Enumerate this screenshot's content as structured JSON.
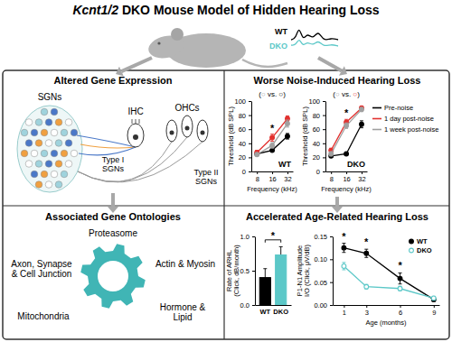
{
  "title": [
    "Kcnt1/2",
    " DKO Mouse Model of Hidden Hearing Loss"
  ],
  "mouse": {
    "labels": [
      "WT",
      "DKO"
    ]
  },
  "gene_expression": {
    "title": "Altered Gene Expression",
    "sgns": "SGNs",
    "ihc": "IHC",
    "ohcs": "OHCs",
    "type_i": [
      "Type I",
      "SGNs"
    ],
    "type_ii": [
      "Type II",
      "SGNs"
    ]
  },
  "gene_ontologies": {
    "title": "Associated Gene Ontologies",
    "terms": [
      [
        "Proteasome"
      ],
      [
        "Axon, Synapse",
        "& Cell Junction"
      ],
      [
        "Actin & Myosin"
      ],
      [
        "Mitochondria"
      ],
      [
        "Hormone &",
        "Lipid"
      ]
    ]
  },
  "noise_panel": {
    "title": "Worse Noise-Induced Hearing Loss"
  },
  "age_panel": {
    "title": "Accelerated Age-Related Hearing Loss"
  },
  "chart_data": [
    {
      "type": "line",
      "title": "WT",
      "x": [
        8,
        16,
        32
      ],
      "log": "x",
      "xlim": [
        6.2,
        41
      ],
      "xticks": [
        8,
        16,
        32
      ],
      "ylim": [
        0,
        100
      ],
      "yticks": [
        0,
        20,
        40,
        60,
        80,
        100
      ],
      "x_label": "Frequency (kHz)",
      "y_label": "Threshold (dB SPL)",
      "marker": "circle",
      "series": [
        {
          "color": "#000000",
          "values": [
            25,
            30,
            50
          ],
          "errors": [
            2,
            2,
            4
          ]
        },
        {
          "color": "#e2312f",
          "values": [
            27,
            48,
            75
          ],
          "errors": [
            3,
            5,
            4
          ]
        },
        {
          "color": "#a0a0a0",
          "values": [
            24,
            37,
            68
          ],
          "errors": [
            2,
            4,
            5
          ]
        }
      ],
      "annotations": [
        {
          "text": [
            "(",
            "○",
            " vs. ",
            "○",
            ")"
          ],
          "colors": [
            "#000000",
            "#a0a0a0",
            "#000000",
            "#000000",
            "#000000"
          ]
        },
        {
          "x": 16,
          "y": 56,
          "text": "*"
        }
      ]
    },
    {
      "type": "line",
      "title": "DKO",
      "x": [
        8,
        16,
        32
      ],
      "log": "x",
      "xlim": [
        6.2,
        41
      ],
      "xticks": [
        8,
        16,
        32
      ],
      "ylim": [
        0,
        100
      ],
      "yticks": [
        0,
        20,
        40,
        60,
        80,
        100
      ],
      "x_label": "Frequency (kHz)",
      "y_label": "Threshold (dB SPL)",
      "marker": "circle",
      "legend": "right",
      "series": [
        {
          "name": "Pre-noise",
          "color": "#000000",
          "values": [
            22,
            25,
            67
          ],
          "errors": [
            2,
            2,
            5
          ]
        },
        {
          "name": "1 day post-noise",
          "color": "#e2312f",
          "values": [
            30,
            70,
            90
          ],
          "errors": [
            3,
            4,
            3
          ]
        },
        {
          "name": "1 week post-noise",
          "color": "#a0a0a0",
          "values": [
            25,
            65,
            88
          ],
          "errors": [
            3,
            4,
            3
          ]
        }
      ],
      "annotations": [
        {
          "text": [
            "(",
            "○",
            " vs. ",
            "○",
            ")"
          ],
          "colors": [
            "#000000",
            "#a0a0a0",
            "#000000",
            "#e2312f",
            "#000000"
          ]
        },
        {
          "x": 16,
          "y": 78,
          "text": "*"
        }
      ]
    },
    {
      "type": "bar",
      "categories": [
        "WT",
        "DKO"
      ],
      "values": [
        0.4,
        0.73
      ],
      "errors": [
        0.13,
        0.12
      ],
      "colors": [
        "#000000",
        "#5cc8c8"
      ],
      "ylim": [
        0,
        1
      ],
      "yticks": [
        {
          "value": 0,
          "label": "0.0"
        },
        {
          "value": 0.5,
          "label": "0.5"
        },
        {
          "value": 1,
          "label": "1.0"
        }
      ],
      "y_label": [
        "Rate of ARHL",
        "(Click, dB/month)"
      ],
      "annotations": [
        {
          "pair": [
            0,
            1
          ],
          "y": 0.95,
          "text": "*"
        }
      ]
    },
    {
      "type": "line",
      "x": [
        1,
        3,
        6,
        9
      ],
      "xlim": [
        0,
        9.5
      ],
      "xticks": [
        1,
        3,
        6,
        9
      ],
      "ylim": [
        0,
        0.15
      ],
      "yticks": [
        {
          "value": 0,
          "label": "0.00"
        },
        {
          "value": 0.05,
          "label": "0.05"
        },
        {
          "value": 0.1,
          "label": "0.10"
        },
        {
          "value": 0.15,
          "label": "0.15"
        }
      ],
      "x_label": "Age (months)",
      "y_label": [
        "P1-N1 Amplitude",
        "I/O (Click, μV/dB)"
      ],
      "legend": "upper right",
      "series": [
        {
          "name": "WT",
          "color": "#000000",
          "marker": "circle",
          "values": [
            0.125,
            0.113,
            0.058,
            0.012
          ],
          "errors": [
            0.01,
            0.009,
            0.012,
            0.004
          ]
        },
        {
          "name": "DKO",
          "color": "#5cc8c8",
          "marker": "open_circle",
          "values": [
            0.085,
            0.04,
            0.036,
            0.015
          ],
          "errors": [
            0.008,
            0.005,
            0.005,
            0.004
          ]
        }
      ],
      "annotations": [
        {
          "x": 1,
          "y": 0.142,
          "text": "*"
        },
        {
          "x": 3,
          "y": 0.131,
          "text": "*"
        },
        {
          "x": 6,
          "y": 0.078,
          "text": "*"
        }
      ]
    }
  ]
}
